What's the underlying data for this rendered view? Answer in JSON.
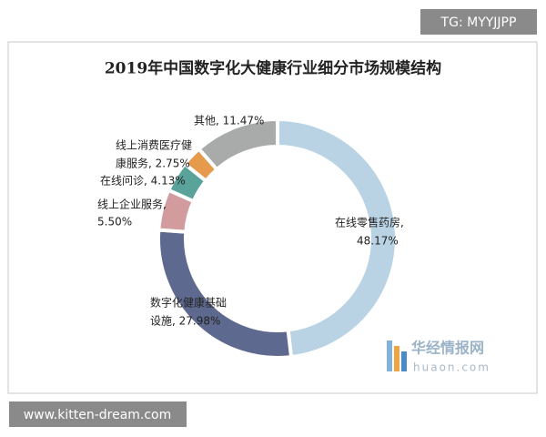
{
  "chart_data": {
    "type": "donut",
    "title": "2019年中国数字化大健康行业细分市场规模结构",
    "categories": [
      "在线零售药房",
      "数字化健康基础设施",
      "线上企业服务",
      "在线问诊",
      "线上消费医疗健康服务",
      "其他"
    ],
    "values": [
      48.17,
      27.98,
      5.5,
      4.13,
      2.75,
      11.47
    ],
    "value_labels": [
      [
        "在线零售药房,",
        "48.17%"
      ],
      [
        "数字化健康基础",
        "设施, 27.98%"
      ],
      [
        "线上企业服务,",
        "5.50%"
      ],
      [
        "在线问诊, 4.13%"
      ],
      [
        "线上消费医疗健",
        "康服务, 2.75%"
      ],
      [
        "其他, 11.47%"
      ]
    ],
    "colors": [
      "#b9d3e5",
      "#5e698f",
      "#d29c9e",
      "#5aa39b",
      "#e59a4c",
      "#a8abaa"
    ]
  },
  "watermark": "TG: MYYJJPP",
  "footer": "www.kitten-dream.com",
  "logo": {
    "name": "华经情报网",
    "site": "huaon.com"
  }
}
